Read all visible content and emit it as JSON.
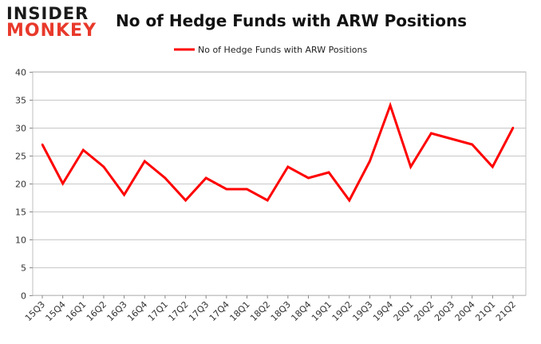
{
  "logo": {
    "line1": "INSIDER",
    "line2": "MONKEY"
  },
  "chart_data": {
    "type": "line",
    "title": "No of Hedge Funds with ARW Positions",
    "xlabel": "",
    "ylabel": "",
    "categories": [
      "15Q3",
      "15Q4",
      "16Q1",
      "16Q2",
      "16Q3",
      "16Q4",
      "17Q1",
      "17Q2",
      "17Q3",
      "17Q4",
      "18Q1",
      "18Q2",
      "18Q3",
      "18Q4",
      "19Q1",
      "19Q2",
      "19Q3",
      "19Q4",
      "20Q1",
      "20Q2",
      "20Q3",
      "20Q4",
      "21Q1",
      "21Q2"
    ],
    "series": [
      {
        "name": "No of Hedge Funds with ARW Positions",
        "color": "#ff0000",
        "values": [
          27,
          20,
          26,
          23,
          18,
          24,
          21,
          17,
          21,
          19,
          19,
          17,
          23,
          21,
          22,
          17,
          24,
          34,
          23,
          29,
          28,
          27,
          23,
          30
        ]
      }
    ],
    "ylim": [
      0,
      40
    ],
    "yticks": [
      0,
      5,
      10,
      15,
      20,
      25,
      30,
      35,
      40
    ],
    "grid": "horizontal",
    "legend": "top-center"
  }
}
